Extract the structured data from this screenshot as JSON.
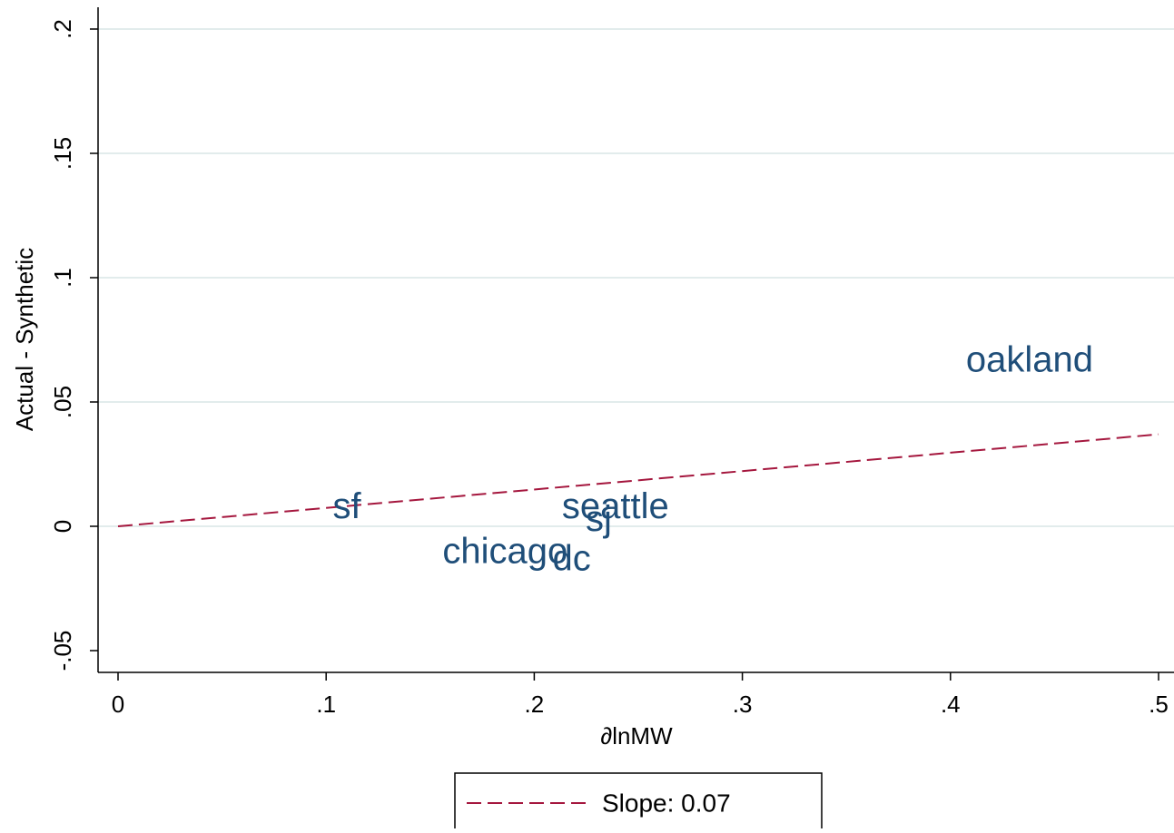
{
  "chart_data": {
    "type": "scatter",
    "xlabel": "∂lnMW",
    "ylabel": "Actual - Synthetic",
    "xlim": [
      -0.01,
      0.505
    ],
    "ylim": [
      -0.058,
      0.207
    ],
    "x_ticks": [
      0,
      0.1,
      0.2,
      0.3,
      0.4,
      0.5
    ],
    "x_tick_labels": [
      "0",
      ".1",
      ".2",
      ".3",
      ".4",
      ".5"
    ],
    "y_ticks": [
      -0.05,
      0,
      0.05,
      0.1,
      0.15,
      0.2
    ],
    "y_tick_labels": [
      "-.05",
      "0",
      ".05",
      ".1",
      ".15",
      ".2"
    ],
    "grid": true,
    "points": [
      {
        "label": "sf",
        "x": 0.11,
        "y": 0.008
      },
      {
        "label": "seattle",
        "x": 0.239,
        "y": 0.008
      },
      {
        "label": "sj",
        "x": 0.231,
        "y": 0.003
      },
      {
        "label": "chicago",
        "x": 0.186,
        "y": -0.01
      },
      {
        "label": "dc",
        "x": 0.218,
        "y": -0.013
      },
      {
        "label": "oakland",
        "x": 0.438,
        "y": 0.067
      }
    ],
    "fit_line": {
      "x": [
        0,
        0.5
      ],
      "y": [
        0,
        0.037
      ]
    },
    "legend": {
      "position": "bottom-center",
      "entries": [
        "Slope: 0.07"
      ]
    },
    "colors": {
      "points": "#1f4e79",
      "fit_line": "#a5173e",
      "grid": "#e2ecec",
      "axis": "#000000"
    }
  }
}
